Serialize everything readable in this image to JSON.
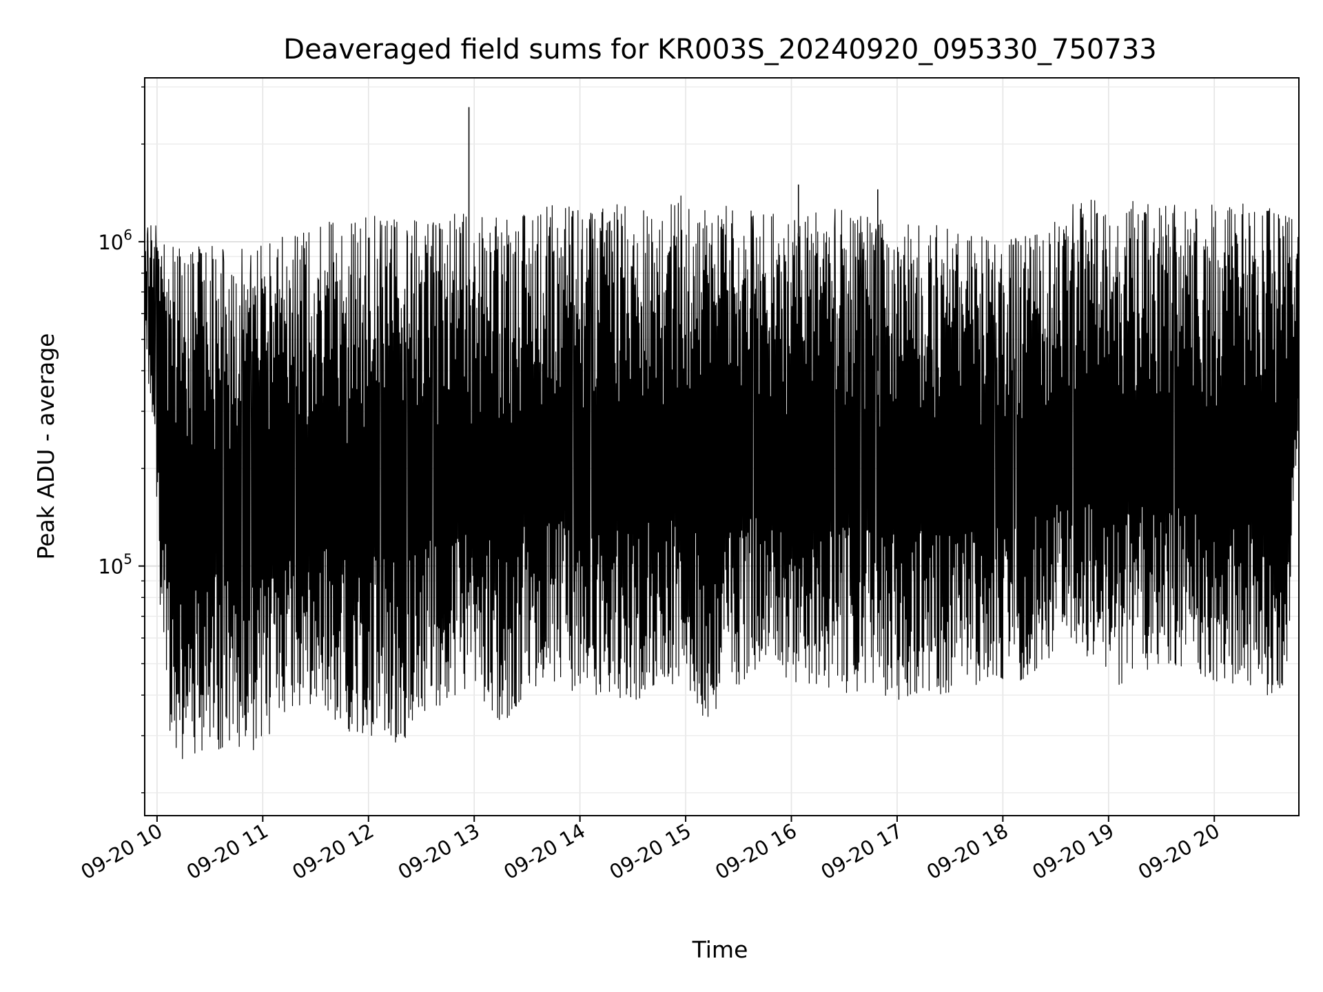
{
  "chart_data": {
    "type": "line",
    "title": "Deaveraged field sums for KR003S_20240920_095330_750733",
    "xlabel": "Time",
    "ylabel": "Peak ADU - average",
    "yscale": "log",
    "ylim": [
      17000,
      3200000
    ],
    "xlim": [
      "2024-09-20 09:53",
      "2024-09-20 20:48"
    ],
    "grid": true,
    "x_ticks": [
      {
        "label": "09-20 10",
        "value": "2024-09-20 10:00"
      },
      {
        "label": "09-20 11",
        "value": "2024-09-20 11:00"
      },
      {
        "label": "09-20 12",
        "value": "2024-09-20 12:00"
      },
      {
        "label": "09-20 13",
        "value": "2024-09-20 13:00"
      },
      {
        "label": "09-20 14",
        "value": "2024-09-20 14:00"
      },
      {
        "label": "09-20 15",
        "value": "2024-09-20 15:00"
      },
      {
        "label": "09-20 16",
        "value": "2024-09-20 16:00"
      },
      {
        "label": "09-20 17",
        "value": "2024-09-20 17:00"
      },
      {
        "label": "09-20 18",
        "value": "2024-09-20 18:00"
      },
      {
        "label": "09-20 19",
        "value": "2024-09-20 19:00"
      },
      {
        "label": "09-20 20",
        "value": "2024-09-20 20:00"
      }
    ],
    "y_ticks": [
      {
        "base": "10",
        "exp": "5",
        "value": 100000
      },
      {
        "base": "10",
        "exp": "6",
        "value": 1000000
      }
    ],
    "series": [
      {
        "color": "#000000",
        "x": [
          "2024-09-20 09:53",
          "2024-09-20 09:56",
          "2024-09-20 10:00",
          "2024-09-20 10:06",
          "2024-09-20 10:15",
          "2024-09-20 10:24",
          "2024-09-20 10:33",
          "2024-09-20 10:45",
          "2024-09-20 10:54",
          "2024-09-20 11:03",
          "2024-09-20 11:15",
          "2024-09-20 11:30",
          "2024-09-20 11:45",
          "2024-09-20 11:57",
          "2024-09-20 12:06",
          "2024-09-20 12:18",
          "2024-09-20 12:30",
          "2024-09-20 12:45",
          "2024-09-20 12:54",
          "2024-09-20 13:03",
          "2024-09-20 13:18",
          "2024-09-20 13:30",
          "2024-09-20 13:45",
          "2024-09-20 14:00",
          "2024-09-20 14:15",
          "2024-09-20 14:30",
          "2024-09-20 14:45",
          "2024-09-20 14:57",
          "2024-09-20 15:12",
          "2024-09-20 15:24",
          "2024-09-20 15:36",
          "2024-09-20 15:48",
          "2024-09-20 16:00",
          "2024-09-20 16:15",
          "2024-09-20 16:30",
          "2024-09-20 16:45",
          "2024-09-20 17:00",
          "2024-09-20 17:15",
          "2024-09-20 17:30",
          "2024-09-20 17:45",
          "2024-09-20 17:57",
          "2024-09-20 18:09",
          "2024-09-20 18:24",
          "2024-09-20 18:39",
          "2024-09-20 18:51",
          "2024-09-20 19:03",
          "2024-09-20 19:18",
          "2024-09-20 19:33",
          "2024-09-20 19:48",
          "2024-09-20 20:00",
          "2024-09-20 20:15",
          "2024-09-20 20:30",
          "2024-09-20 20:42",
          "2024-09-20 20:48"
        ],
        "y_high": [
          900000,
          1300000,
          1100000,
          950000,
          1000000,
          1000000,
          1000000,
          950000,
          1000000,
          1000000,
          1100000,
          1150000,
          1150000,
          1200000,
          1200000,
          1200000,
          1200000,
          1250000,
          1230000,
          1200000,
          1250000,
          1250000,
          1300000,
          1300000,
          1300000,
          1350000,
          1400000,
          1400000,
          1350000,
          1300000,
          1280000,
          1250000,
          1200000,
          1300000,
          1250000,
          1200000,
          1150000,
          1150000,
          1100000,
          1050000,
          1000000,
          1050000,
          1150000,
          1300000,
          1350000,
          1350000,
          1350000,
          1350000,
          1330000,
          1300000,
          1320000,
          1350000,
          1300000,
          1200000
        ],
        "y_low": [
          500000,
          330000,
          110000,
          32000,
          24000,
          26000,
          27000,
          28000,
          26000,
          30000,
          36000,
          38000,
          32000,
          29000,
          31000,
          28000,
          35000,
          38000,
          40000,
          38000,
          32000,
          42000,
          44000,
          40000,
          40000,
          38000,
          42000,
          44000,
          33000,
          40000,
          46000,
          50000,
          44000,
          43000,
          40000,
          42000,
          38000,
          41000,
          40000,
          43000,
          45000,
          44000,
          50000,
          60000,
          50000,
          42000,
          47000,
          50000,
          48000,
          44000,
          43000,
          38000,
          45000,
          300000
        ],
        "spikes": [
          {
            "x": "2024-09-20 12:57",
            "y": 2600000
          },
          {
            "x": "2024-09-20 16:04",
            "y": 1500000
          },
          {
            "x": "2024-09-20 16:49",
            "y": 1450000
          }
        ]
      }
    ]
  }
}
